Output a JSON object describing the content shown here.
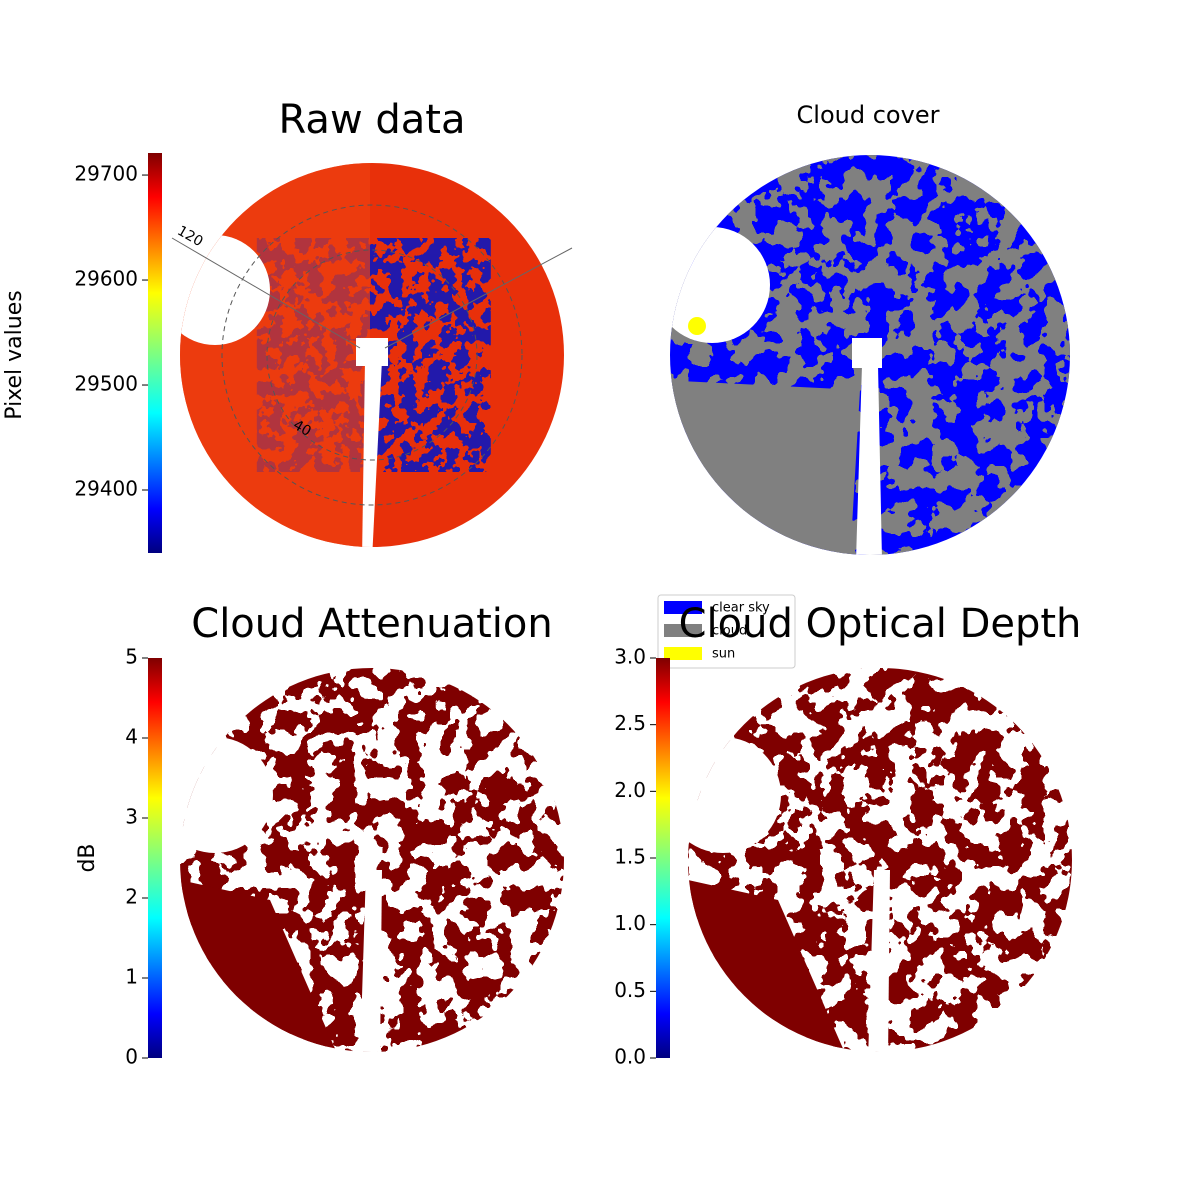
{
  "chart_data": [
    {
      "type": "image",
      "title": "Raw data",
      "colorbar": {
        "label": "Pixel values",
        "colormap": "jet",
        "ylim": [
          29340,
          29721
        ],
        "yticks": [
          29400,
          29500,
          29600,
          29700
        ]
      },
      "annotations": [
        "120",
        "40"
      ]
    },
    {
      "type": "image",
      "title": "Cloud cover",
      "legend": [
        {
          "name": "clear sky",
          "color": "#0000ff"
        },
        {
          "name": "cloud",
          "color": "#808080"
        },
        {
          "name": "sun",
          "color": "#ffff00"
        }
      ]
    },
    {
      "type": "image",
      "title": "Cloud Attenuation",
      "colorbar": {
        "label": "dB",
        "colormap": "jet",
        "ylim": [
          0,
          5
        ],
        "yticks": [
          0,
          1,
          2,
          3,
          4,
          5
        ]
      }
    },
    {
      "type": "image",
      "title": "Cloud Optical Depth",
      "colorbar": {
        "colormap": "jet",
        "ylim": [
          0,
          3
        ],
        "yticks": [
          {
            "value": 0,
            "label": "0.0"
          },
          0.5,
          {
            "value": 1,
            "label": "1.0"
          },
          1.5,
          {
            "value": 2,
            "label": "2.0"
          },
          2.5,
          {
            "value": 3,
            "label": "3.0"
          }
        ]
      }
    }
  ]
}
